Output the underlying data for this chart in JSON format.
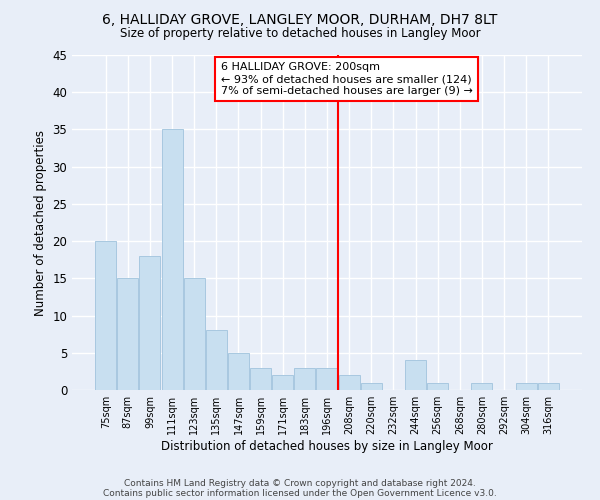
{
  "title": "6, HALLIDAY GROVE, LANGLEY MOOR, DURHAM, DH7 8LT",
  "subtitle": "Size of property relative to detached houses in Langley Moor",
  "xlabel": "Distribution of detached houses by size in Langley Moor",
  "ylabel": "Number of detached properties",
  "categories": [
    "75sqm",
    "87sqm",
    "99sqm",
    "111sqm",
    "123sqm",
    "135sqm",
    "147sqm",
    "159sqm",
    "171sqm",
    "183sqm",
    "196sqm",
    "208sqm",
    "220sqm",
    "232sqm",
    "244sqm",
    "256sqm",
    "268sqm",
    "280sqm",
    "292sqm",
    "304sqm",
    "316sqm"
  ],
  "values": [
    20,
    15,
    18,
    35,
    15,
    8,
    5,
    3,
    2,
    3,
    3,
    2,
    1,
    0,
    4,
    1,
    0,
    1,
    0,
    1,
    1
  ],
  "bar_color": "#c8dff0",
  "bar_edge_color": "#a8c8e0",
  "red_line_x": 10.5,
  "annotation_title": "6 HALLIDAY GROVE: 200sqm",
  "annotation_line1": "← 93% of detached houses are smaller (124)",
  "annotation_line2": "7% of semi-detached houses are larger (9) →",
  "ylim": [
    0,
    45
  ],
  "background_color": "#e8eef8",
  "plot_bg_color": "#e8eef8",
  "grid_color": "#ffffff",
  "footnote_line1": "Contains HM Land Registry data © Crown copyright and database right 2024.",
  "footnote_line2": "Contains public sector information licensed under the Open Government Licence v3.0."
}
